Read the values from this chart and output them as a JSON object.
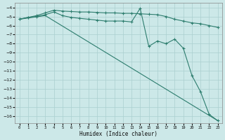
{
  "xlabel": "Humidex (Indice chaleur)",
  "bg_color": "#cce8e8",
  "grid_color": "#aacfcf",
  "line_color": "#2d7d6e",
  "xlim": [
    -0.5,
    23.5
  ],
  "ylim": [
    -16.8,
    -3.5
  ],
  "yticks": [
    -4,
    -5,
    -6,
    -7,
    -8,
    -9,
    -10,
    -11,
    -12,
    -13,
    -14,
    -15,
    -16
  ],
  "xticks": [
    0,
    1,
    2,
    3,
    4,
    5,
    6,
    7,
    8,
    9,
    10,
    11,
    12,
    13,
    14,
    15,
    16,
    17,
    18,
    19,
    20,
    21,
    22,
    23
  ],
  "line1_x": [
    0,
    1,
    2,
    3,
    4,
    5,
    6,
    7,
    8,
    9,
    10,
    11,
    12,
    13,
    14,
    15,
    16,
    17,
    18,
    19,
    20,
    21,
    22,
    23
  ],
  "line1_y": [
    -5.3,
    -5.1,
    -4.9,
    -4.6,
    -4.3,
    -4.4,
    -4.45,
    -4.5,
    -4.5,
    -4.55,
    -4.6,
    -4.6,
    -4.65,
    -4.65,
    -4.7,
    -4.75,
    -4.8,
    -5.0,
    -5.3,
    -5.5,
    -5.7,
    -5.8,
    -6.0,
    -6.2
  ],
  "line2_x": [
    0,
    1,
    2,
    3,
    4,
    5,
    6,
    7,
    8,
    9,
    10,
    11,
    12,
    13,
    14,
    15,
    16,
    17,
    18,
    19,
    20,
    21,
    22,
    23
  ],
  "line2_y": [
    -5.3,
    -5.1,
    -5.0,
    -4.8,
    -4.5,
    -4.9,
    -5.1,
    -5.2,
    -5.3,
    -5.4,
    -5.5,
    -5.5,
    -5.5,
    -5.6,
    -4.1,
    -8.3,
    -7.7,
    -8.0,
    -7.5,
    -8.5,
    -11.5,
    -13.3,
    -15.8,
    -16.5
  ],
  "line3_x": [
    0,
    3,
    23
  ],
  "line3_y": [
    -5.3,
    -4.9,
    -16.5
  ]
}
